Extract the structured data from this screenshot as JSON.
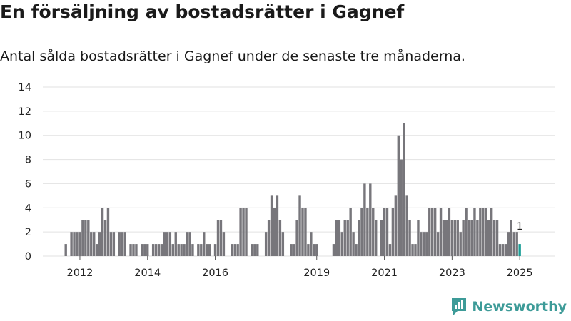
{
  "title": "En försäljning av bostadsrätter i Gagnef",
  "subtitle": "Antal sålda bostadsrätter i Gagnef under de senaste tre månaderna.",
  "brand": {
    "name": "Newsworthy"
  },
  "colors": {
    "bar": "#77767b",
    "highlight": "#1a9e96",
    "grid": "#e2e2e2",
    "brand": "#3d9b98"
  },
  "chart_data": {
    "type": "bar",
    "title": "En försäljning av bostadsrätter i Gagnef",
    "subtitle": "Antal sålda bostadsrätter i Gagnef under de senaste tre månaderna.",
    "xlabel": "",
    "ylabel": "",
    "ylim": [
      0,
      14
    ],
    "yticks": [
      0,
      2,
      4,
      6,
      8,
      10,
      12,
      14
    ],
    "xticks": [
      {
        "label": "2012",
        "index": 5
      },
      {
        "label": "2014",
        "index": 29
      },
      {
        "label": "2016",
        "index": 53
      },
      {
        "label": "2019",
        "index": 89
      },
      {
        "label": "2021",
        "index": 113
      },
      {
        "label": "2023",
        "index": 137
      },
      {
        "label": "2025",
        "index": 161
      }
    ],
    "grid": true,
    "legend": "none",
    "start_month": "2011-11",
    "period": "monthly",
    "highlight_last": true,
    "last_value_label": "1",
    "values": [
      1,
      0,
      2,
      2,
      2,
      2,
      3,
      3,
      3,
      2,
      2,
      1,
      2,
      4,
      3,
      4,
      2,
      2,
      0,
      2,
      2,
      2,
      0,
      1,
      1,
      1,
      0,
      1,
      1,
      1,
      0,
      1,
      1,
      1,
      1,
      2,
      2,
      2,
      1,
      2,
      1,
      1,
      1,
      2,
      2,
      1,
      0,
      1,
      1,
      2,
      1,
      1,
      0,
      1,
      3,
      3,
      2,
      0,
      0,
      1,
      1,
      1,
      4,
      4,
      4,
      0,
      1,
      1,
      1,
      0,
      0,
      2,
      3,
      5,
      4,
      5,
      3,
      2,
      0,
      0,
      1,
      1,
      3,
      5,
      4,
      4,
      1,
      2,
      1,
      1,
      0,
      0,
      0,
      0,
      0,
      1,
      3,
      3,
      2,
      3,
      3,
      4,
      2,
      1,
      3,
      4,
      6,
      4,
      6,
      4,
      3,
      0,
      3,
      4,
      4,
      1,
      4,
      5,
      10,
      8,
      11,
      5,
      3,
      1,
      1,
      3,
      2,
      2,
      2,
      4,
      4,
      4,
      2,
      4,
      3,
      3,
      4,
      3,
      3,
      3,
      2,
      3,
      4,
      3,
      3,
      4,
      3,
      4,
      4,
      4,
      3,
      4,
      3,
      3,
      1,
      1,
      1,
      2,
      3,
      2,
      2,
      1
    ]
  }
}
